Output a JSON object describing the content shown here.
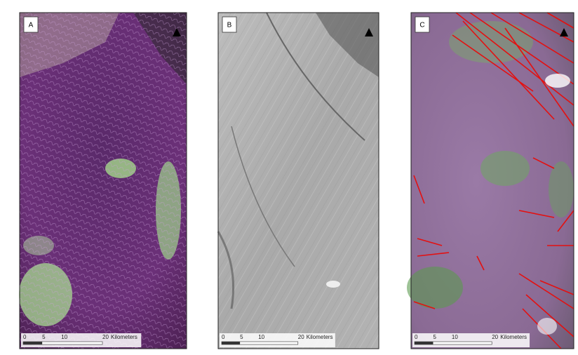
{
  "panels": [
    {
      "label": "A",
      "scale": {
        "ticks": [
          "0",
          "5",
          "10",
          "20"
        ],
        "unit": "Kilometers"
      }
    },
    {
      "label": "B",
      "scale": {
        "ticks": [
          "0",
          "5",
          "10",
          "20"
        ],
        "unit": "Kilometers"
      }
    },
    {
      "label": "C",
      "scale": {
        "ticks": [
          "0",
          "5",
          "10",
          "20"
        ],
        "unit": "Kilometers"
      }
    }
  ]
}
